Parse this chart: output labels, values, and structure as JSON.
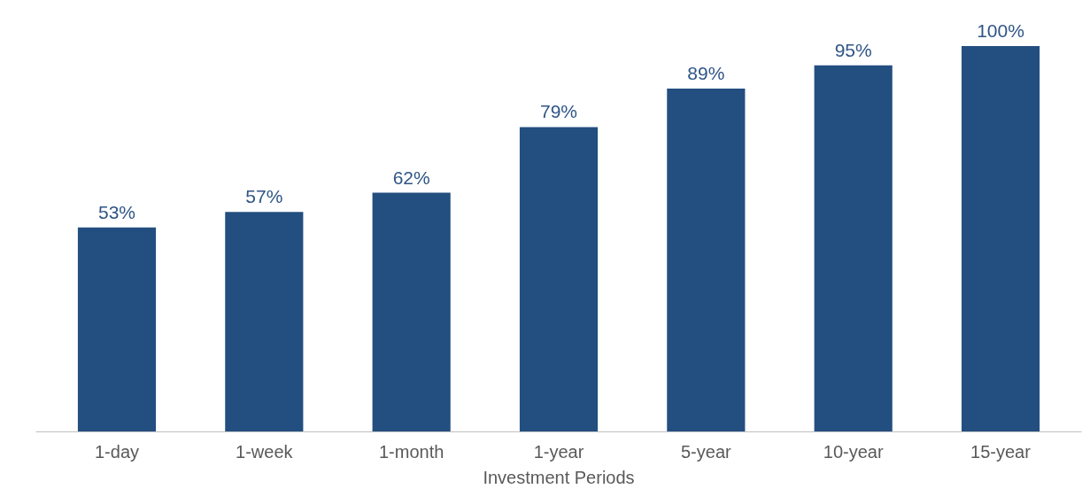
{
  "chart_data": {
    "type": "bar",
    "xlabel": "Investment Periods",
    "categories": [
      "1-day",
      "1-week",
      "1-month",
      "1-year",
      "5-year",
      "10-year",
      "15-year"
    ],
    "values": [
      53,
      57,
      62,
      79,
      89,
      95,
      100
    ],
    "value_labels": [
      "53%",
      "57%",
      "62%",
      "79%",
      "89%",
      "95%",
      "100%"
    ],
    "color": "#234e80"
  }
}
